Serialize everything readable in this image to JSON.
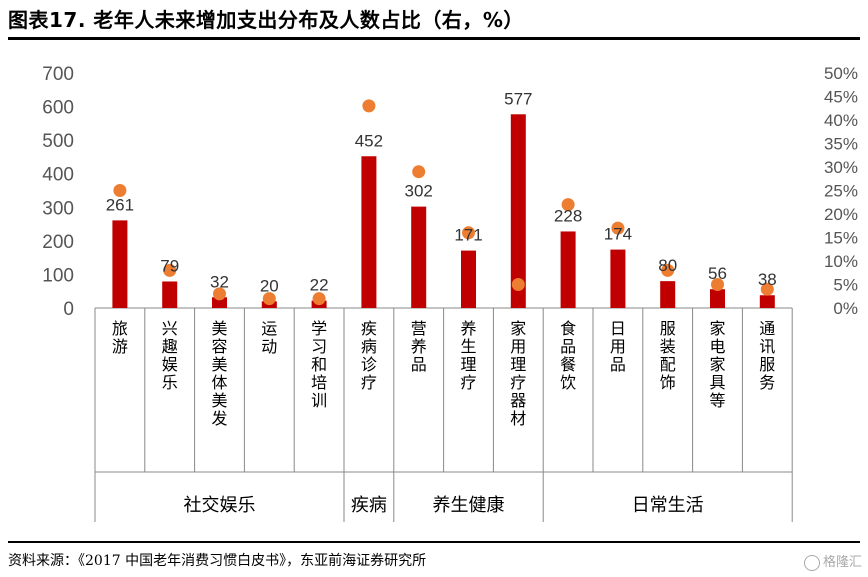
{
  "header": {
    "title": "图表17. 老年人未来增加支出分布及人数占比（右，%）"
  },
  "footer": {
    "source": "资料来源：《2017 中国老年消费习惯白皮书》，东亚前海证券研究所",
    "watermark": "格隆汇"
  },
  "colors": {
    "bar": "#c00000",
    "dot": "#ed7d31"
  },
  "chart_data": {
    "type": "bar",
    "categories": [
      "旅游",
      "兴趣娱乐",
      "美容美体美发",
      "运动",
      "学习和培训",
      "疾病诊疗",
      "营养品",
      "养生理疗",
      "家用理疗器材",
      "食品餐饮",
      "日用品",
      "服装配饰",
      "家电家具等",
      "通讯服务"
    ],
    "groups": [
      {
        "name": "社交娱乐",
        "count": 5
      },
      {
        "name": "疾病",
        "count": 1
      },
      {
        "name": "养生健康",
        "count": 3
      },
      {
        "name": "日常生活",
        "count": 5
      }
    ],
    "series": [
      {
        "type": "bar",
        "axis": "left",
        "values": [
          261,
          79,
          32,
          20,
          22,
          452,
          302,
          171,
          577,
          228,
          174,
          80,
          56,
          38
        ]
      },
      {
        "type": "scatter",
        "axis": "right",
        "values": [
          25,
          8,
          3,
          2,
          2,
          43,
          29,
          16,
          5,
          22,
          17,
          8,
          5,
          4
        ]
      }
    ],
    "data_labels": [
      "261",
      "79",
      "32",
      "20",
      "22",
      "452",
      "302",
      "171",
      "577",
      "228",
      "174",
      "80",
      "56",
      "38"
    ],
    "ylim_left": [
      0,
      700
    ],
    "yticks_left": [
      "0",
      "100",
      "200",
      "300",
      "400",
      "500",
      "600",
      "700"
    ],
    "ylim_right": [
      0,
      50
    ],
    "yticks_right": [
      "0%",
      "5%",
      "10%",
      "15%",
      "20%",
      "25%",
      "30%",
      "35%",
      "40%",
      "45%",
      "50%"
    ],
    "grid": false
  }
}
